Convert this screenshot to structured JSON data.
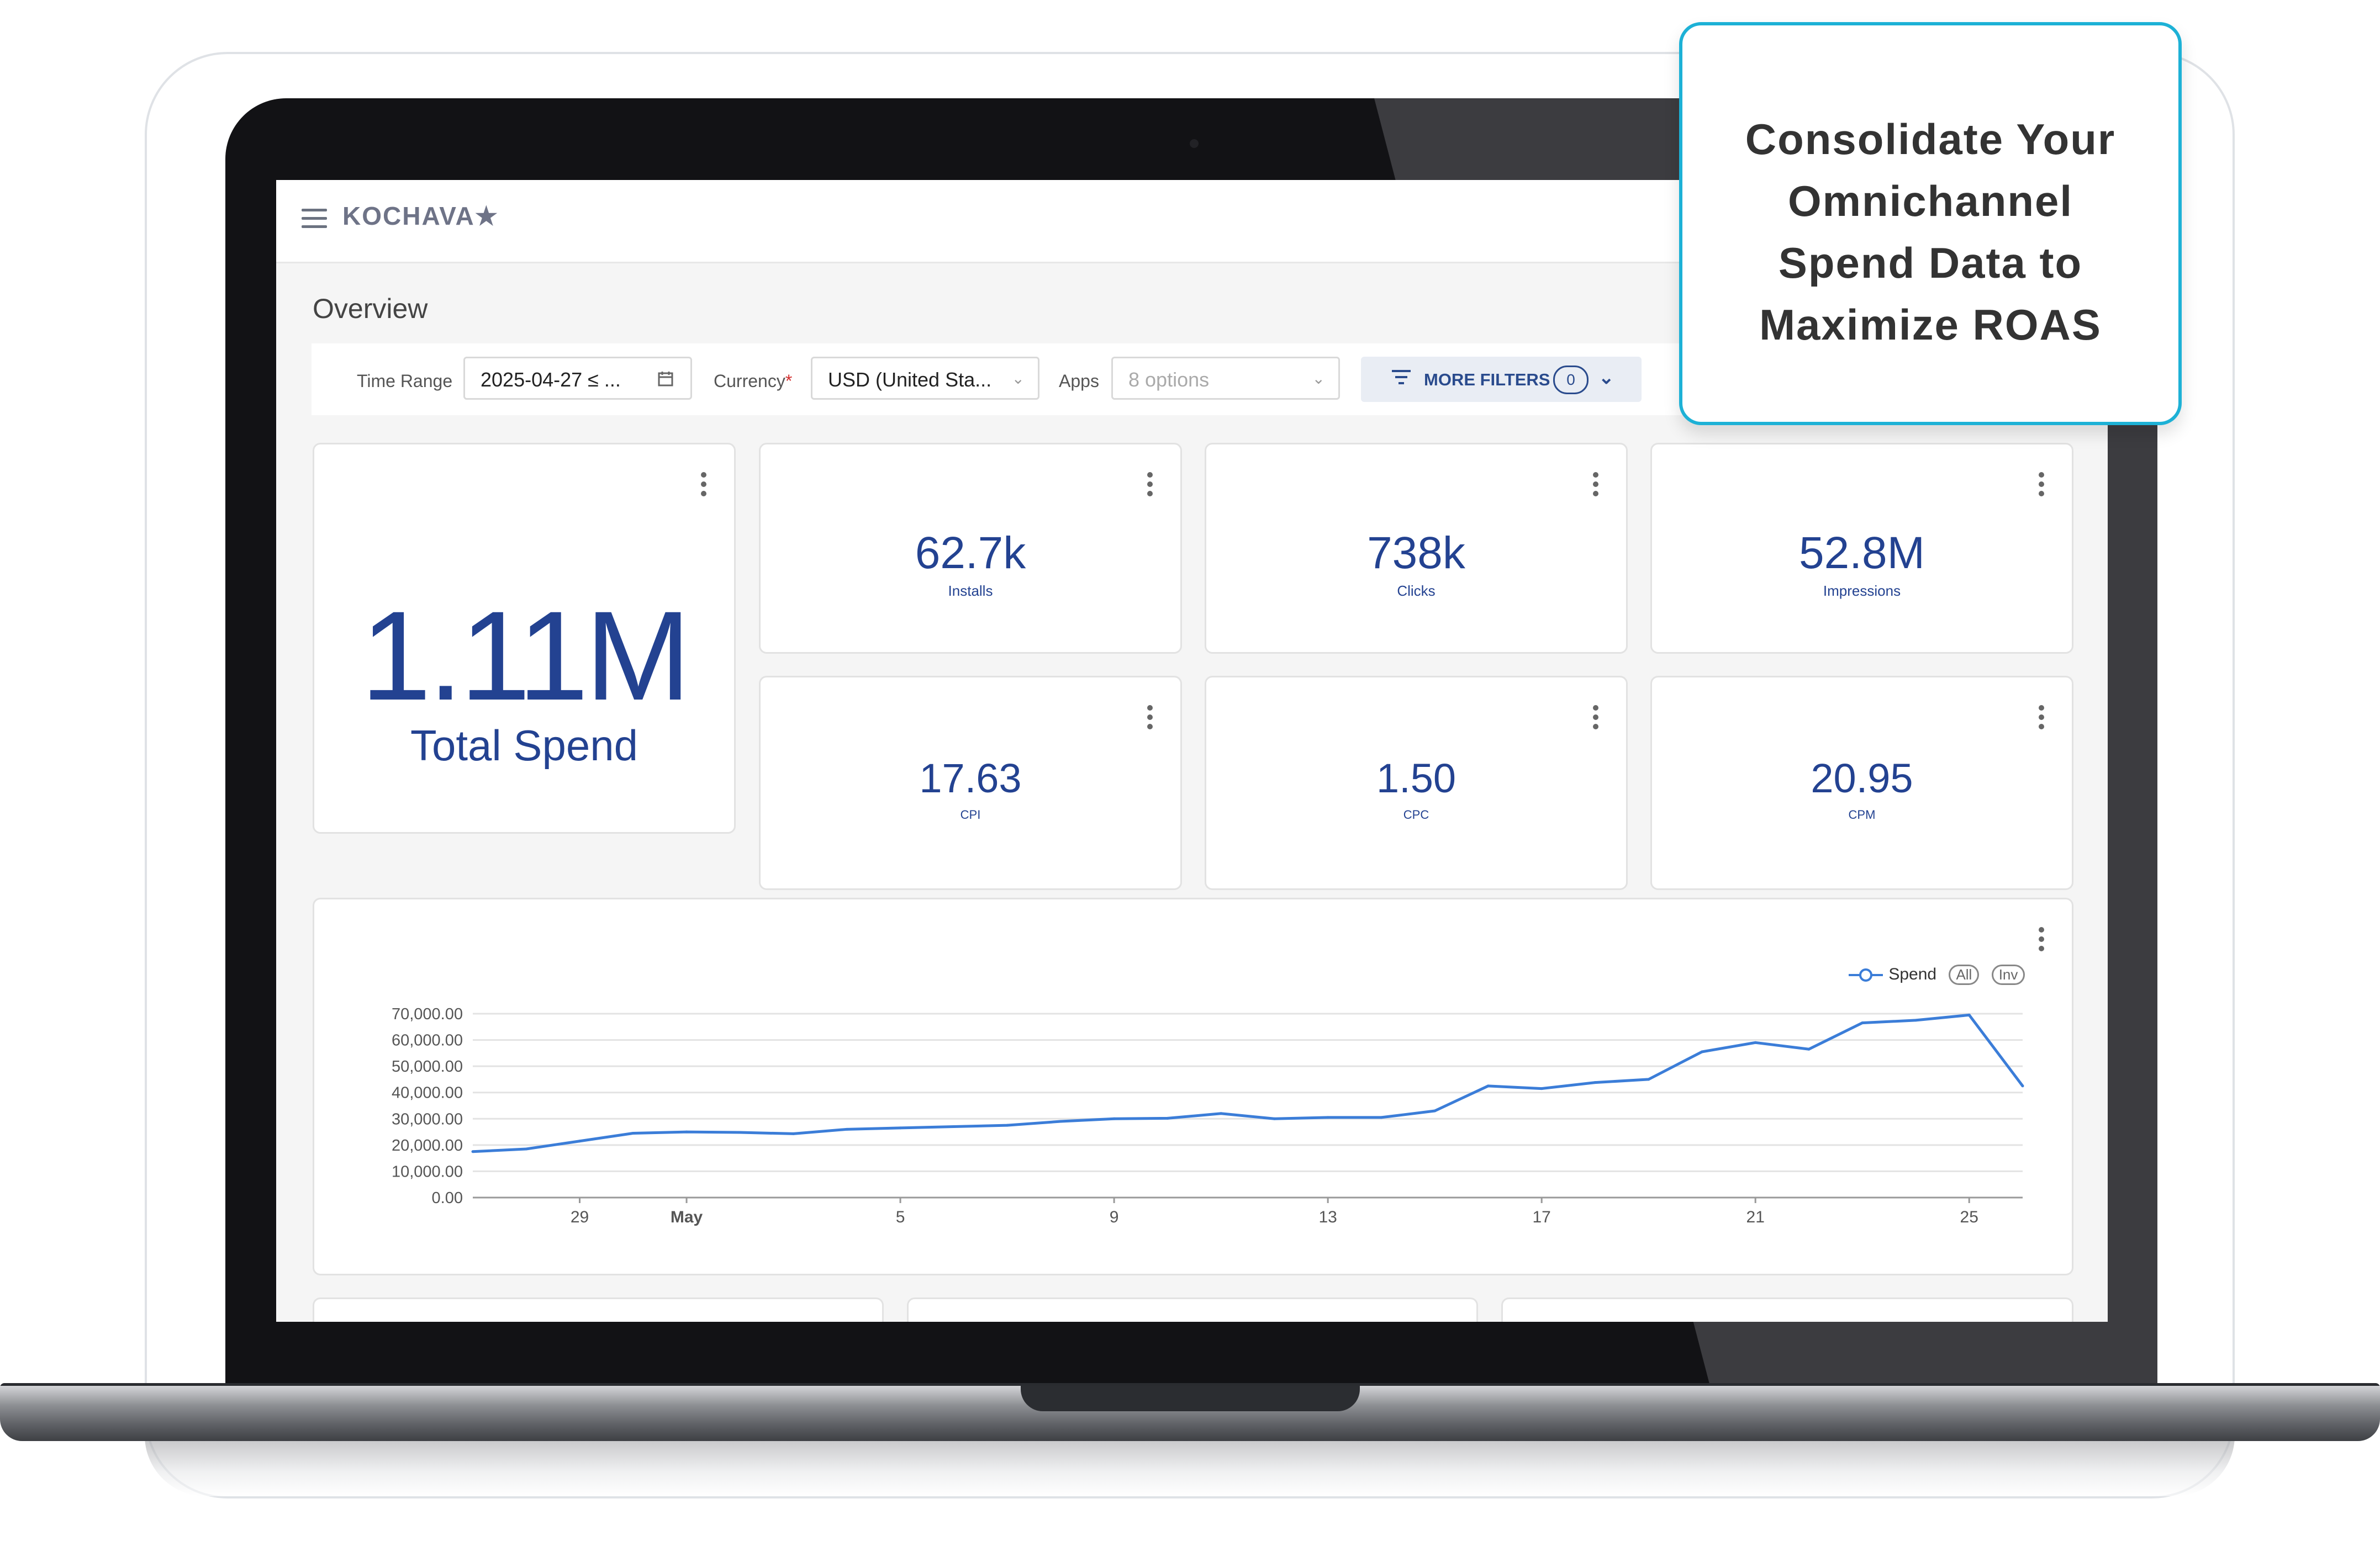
{
  "callout": {
    "lines": [
      "Consolidate Your",
      "Omnichannel",
      "Spend Data to",
      "Maximize ROAS"
    ]
  },
  "app": {
    "brand": "KOCHAVA",
    "brand_star": "★",
    "page_title": "Overview"
  },
  "filters": {
    "time_range_label": "Time Range",
    "time_range_value": "2025-04-27 ≤ ...",
    "currency_label": "Currency",
    "currency_required": "*",
    "currency_value": "USD (United Sta...",
    "apps_label": "Apps",
    "apps_placeholder": "8 options",
    "more_filters_label": "MORE FILTERS",
    "more_filters_count": "0"
  },
  "kpis": {
    "total_spend": {
      "value": "1.11M",
      "label": "Total Spend"
    },
    "tiles": [
      {
        "value": "62.7k",
        "label": "Installs"
      },
      {
        "value": "738k",
        "label": "Clicks"
      },
      {
        "value": "52.8M",
        "label": "Impressions"
      },
      {
        "value": "17.63",
        "label": "CPI"
      },
      {
        "value": "1.50",
        "label": "CPC"
      },
      {
        "value": "20.95",
        "label": "CPM"
      }
    ]
  },
  "chart_legend": {
    "series": "Spend",
    "all": "All",
    "inv": "Inv"
  },
  "chart_data": {
    "type": "line",
    "title": "",
    "xlabel": "",
    "ylabel": "",
    "ylim": [
      0,
      70000
    ],
    "yticks": [
      "70,000.00",
      "60,000.00",
      "50,000.00",
      "40,000.00",
      "30,000.00",
      "20,000.00",
      "10,000.00",
      "0.00"
    ],
    "xticks": [
      {
        "label": "29",
        "index": 2,
        "bold": false
      },
      {
        "label": "May",
        "index": 4,
        "bold": true
      },
      {
        "label": "5",
        "index": 8,
        "bold": false
      },
      {
        "label": "9",
        "index": 12,
        "bold": false
      },
      {
        "label": "13",
        "index": 16,
        "bold": false
      },
      {
        "label": "17",
        "index": 20,
        "bold": false
      },
      {
        "label": "21",
        "index": 24,
        "bold": false
      },
      {
        "label": "25",
        "index": 28,
        "bold": false
      }
    ],
    "series": [
      {
        "name": "Spend",
        "color": "#3b7dd8",
        "x": [
          "Apr 27",
          "Apr 28",
          "Apr 29",
          "Apr 30",
          "May 1",
          "May 2",
          "May 3",
          "May 4",
          "May 5",
          "May 6",
          "May 7",
          "May 8",
          "May 9",
          "May 10",
          "May 11",
          "May 12",
          "May 13",
          "May 14",
          "May 15",
          "May 16",
          "May 17",
          "May 18",
          "May 19",
          "May 20",
          "May 21",
          "May 22",
          "May 23",
          "May 24",
          "May 25",
          "May 26"
        ],
        "values": [
          17500,
          18500,
          21500,
          24500,
          25000,
          24800,
          24300,
          26000,
          26500,
          27000,
          27500,
          29000,
          30000,
          30200,
          32000,
          30000,
          30500,
          30500,
          33000,
          42500,
          41500,
          43800,
          45000,
          55500,
          59000,
          56500,
          66500,
          67500,
          69500,
          42500
        ]
      }
    ],
    "grid": true,
    "legend": "top-right"
  }
}
